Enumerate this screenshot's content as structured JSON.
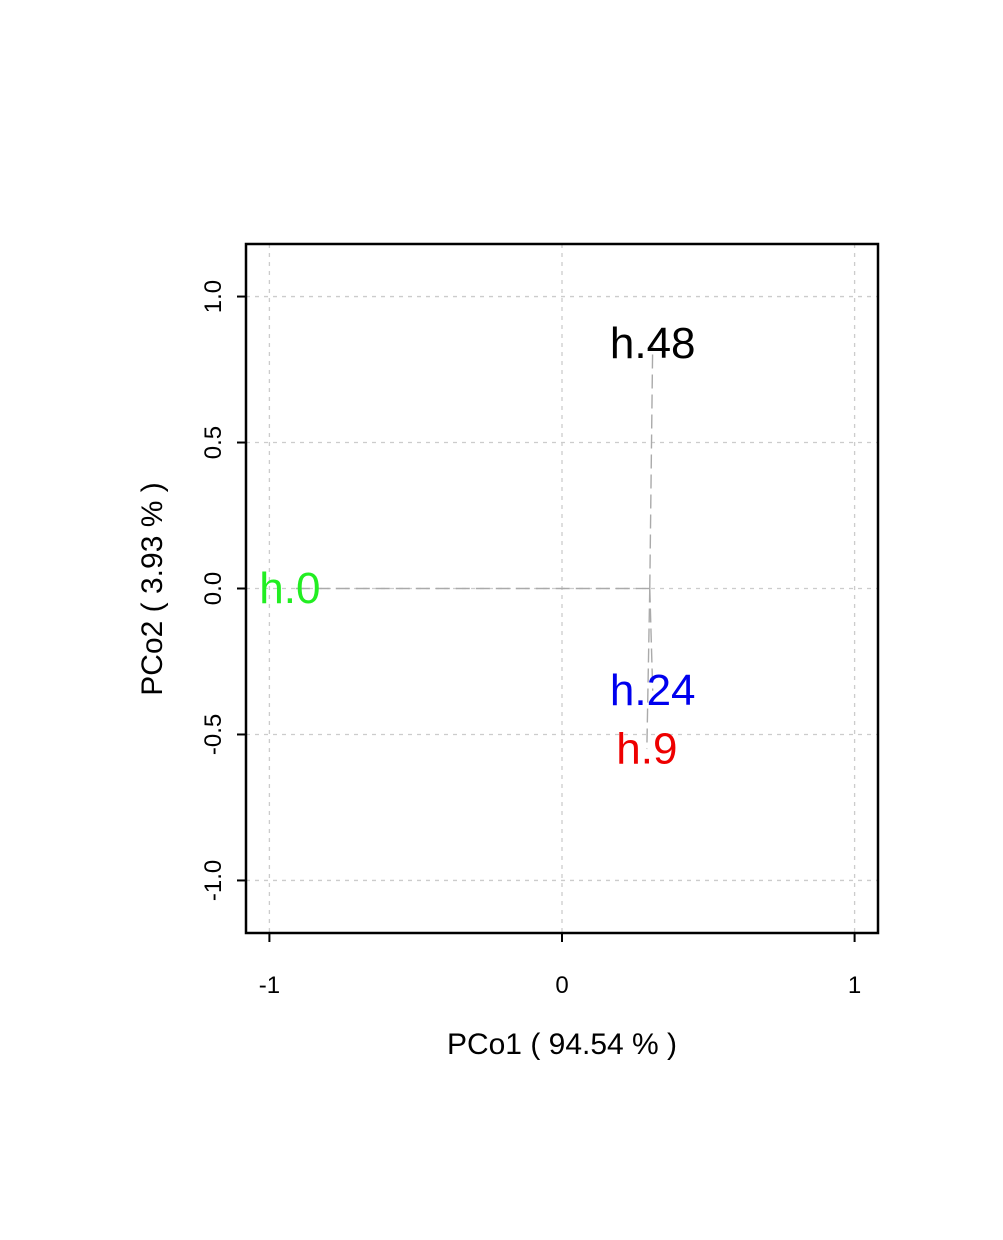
{
  "chart_data": {
    "type": "scatter",
    "xlabel": "PCo1 ( 94.54 % )",
    "ylabel": "PCo2 ( 3.93 % )",
    "xlim": [
      -1.08,
      1.08
    ],
    "ylim": [
      -1.18,
      1.18
    ],
    "x_ticks": [
      {
        "value": -1,
        "label": "-1"
      },
      {
        "value": 0,
        "label": "0"
      },
      {
        "value": 1,
        "label": "1"
      }
    ],
    "y_ticks": [
      {
        "value": -1.0,
        "label": "-1.0"
      },
      {
        "value": -0.5,
        "label": "-0.5"
      },
      {
        "value": 0.0,
        "label": "0.0"
      },
      {
        "value": 0.5,
        "label": "0.5"
      },
      {
        "value": 1.0,
        "label": "1.0"
      }
    ],
    "grid": true,
    "centroid": {
      "x": 0.3,
      "y": 0.0
    },
    "points": [
      {
        "label": "h.0",
        "x": -0.93,
        "y": 0.0,
        "color": "#22ee22"
      },
      {
        "label": "h.48",
        "x": 0.31,
        "y": 0.84,
        "color": "#000000"
      },
      {
        "label": "h.24",
        "x": 0.31,
        "y": -0.35,
        "color": "#0000ee"
      },
      {
        "label": "h.9",
        "x": 0.29,
        "y": -0.55,
        "color": "#ee0000"
      }
    ]
  }
}
